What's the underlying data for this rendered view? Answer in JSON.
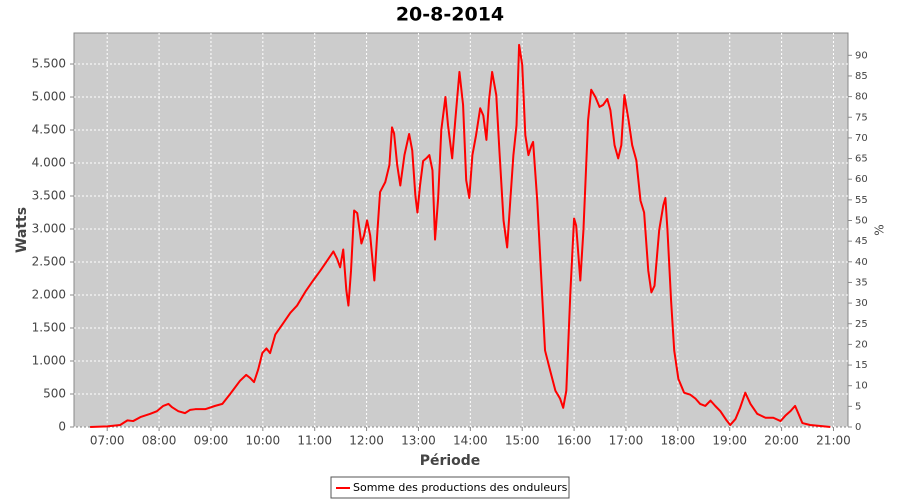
{
  "chart_data": {
    "type": "line",
    "title": "20-8-2014",
    "x_label": "Période",
    "y_label": "Watts",
    "y2_label": "%",
    "grid": true,
    "legend": "bottom",
    "xlim": [
      6.36,
      21.28
    ],
    "xticks": [
      {
        "value": 7,
        "label": "07:00"
      },
      {
        "value": 8,
        "label": "08:00"
      },
      {
        "value": 9,
        "label": "09:00"
      },
      {
        "value": 10,
        "label": "10:00"
      },
      {
        "value": 11,
        "label": "11:00"
      },
      {
        "value": 12,
        "label": "12:00"
      },
      {
        "value": 13,
        "label": "13:00"
      },
      {
        "value": 14,
        "label": "14:00"
      },
      {
        "value": 15,
        "label": "15:00"
      },
      {
        "value": 16,
        "label": "16:00"
      },
      {
        "value": 17,
        "label": "17:00"
      },
      {
        "value": 18,
        "label": "18:00"
      },
      {
        "value": 19,
        "label": "19:00"
      },
      {
        "value": 20,
        "label": "20:00"
      },
      {
        "value": 21,
        "label": "21:00"
      }
    ],
    "ylim": [
      0,
      5970
    ],
    "yticks": [
      0,
      500,
      {
        "value": 1000,
        "label": "1.000"
      },
      {
        "value": 1500,
        "label": "1.500"
      },
      {
        "value": 2000,
        "label": "2.000"
      },
      {
        "value": 2500,
        "label": "2.500"
      },
      {
        "value": 3000,
        "label": "3.000"
      },
      {
        "value": 3500,
        "label": "3.500"
      },
      {
        "value": 4000,
        "label": "4.000"
      },
      {
        "value": 4500,
        "label": "4.500"
      },
      {
        "value": 5000,
        "label": "5.000"
      },
      {
        "value": 5500,
        "label": "5.500"
      }
    ],
    "y2lim": [
      0,
      95.4
    ],
    "y2ticks": [
      0,
      5,
      10,
      15,
      20,
      25,
      30,
      35,
      40,
      45,
      50,
      55,
      60,
      65,
      70,
      75,
      80,
      85,
      90
    ],
    "x": [
      6.67,
      7.0,
      7.25,
      7.39,
      7.5,
      7.64,
      7.83,
      7.96,
      8.08,
      8.18,
      8.25,
      8.37,
      8.5,
      8.6,
      8.7,
      8.89,
      9.08,
      9.22,
      9.37,
      9.56,
      9.68,
      9.76,
      9.83,
      9.91,
      9.99,
      10.07,
      10.14,
      10.24,
      10.39,
      10.53,
      10.66,
      10.82,
      10.97,
      11.11,
      11.24,
      11.36,
      11.43,
      11.49,
      11.55,
      11.61,
      11.65,
      11.7,
      11.76,
      11.82,
      11.9,
      11.95,
      12.01,
      12.07,
      12.15,
      12.21,
      12.26,
      12.36,
      12.44,
      12.49,
      12.53,
      12.59,
      12.65,
      12.73,
      12.82,
      12.88,
      12.94,
      12.98,
      13.03,
      13.09,
      13.15,
      13.21,
      13.27,
      13.32,
      13.38,
      13.44,
      13.52,
      13.57,
      13.65,
      13.71,
      13.79,
      13.86,
      13.92,
      13.98,
      14.04,
      14.11,
      14.19,
      14.25,
      14.31,
      14.36,
      14.42,
      14.5,
      14.56,
      14.64,
      14.71,
      14.77,
      14.83,
      14.89,
      14.94,
      15.0,
      15.06,
      15.12,
      15.18,
      15.21,
      15.29,
      15.35,
      15.44,
      15.54,
      15.64,
      15.73,
      15.79,
      15.85,
      15.93,
      16.0,
      16.04,
      16.12,
      16.18,
      16.27,
      16.33,
      16.41,
      16.49,
      16.56,
      16.64,
      16.7,
      16.78,
      16.85,
      16.91,
      16.97,
      17.05,
      17.12,
      17.2,
      17.28,
      17.35,
      17.43,
      17.49,
      17.55,
      17.64,
      17.72,
      17.76,
      17.8,
      17.87,
      17.93,
      18.01,
      18.12,
      18.24,
      18.34,
      18.43,
      18.53,
      18.63,
      18.72,
      18.82,
      18.93,
      19.01,
      19.11,
      19.2,
      19.3,
      19.4,
      19.53,
      19.69,
      19.84,
      19.98,
      20.07,
      20.17,
      20.26,
      20.32,
      20.4,
      20.55,
      20.75,
      20.94
    ],
    "series": [
      {
        "name": "Somme des productions des onduleurs",
        "color": "#ff0000",
        "values": [
          0,
          10,
          30,
          100,
          90,
          150,
          200,
          240,
          320,
          350,
          300,
          240,
          210,
          260,
          270,
          270,
          320,
          350,
          500,
          700,
          790,
          740,
          680,
          870,
          1120,
          1190,
          1120,
          1400,
          1570,
          1730,
          1840,
          2050,
          2220,
          2370,
          2520,
          2660,
          2550,
          2420,
          2690,
          2070,
          1840,
          2370,
          3280,
          3240,
          2780,
          2900,
          3130,
          2900,
          2220,
          2980,
          3560,
          3710,
          3970,
          4540,
          4450,
          3970,
          3660,
          4120,
          4440,
          4190,
          3510,
          3250,
          3660,
          4030,
          4070,
          4120,
          3890,
          2840,
          3470,
          4500,
          5000,
          4570,
          4070,
          4650,
          5380,
          4880,
          3740,
          3470,
          4120,
          4420,
          4830,
          4720,
          4350,
          4950,
          5380,
          5030,
          4190,
          3130,
          2720,
          3430,
          4120,
          4570,
          5790,
          5490,
          4420,
          4120,
          4270,
          4320,
          3430,
          2520,
          1160,
          850,
          550,
          430,
          290,
          550,
          2070,
          3160,
          3050,
          2220,
          2980,
          4650,
          5110,
          5000,
          4850,
          4880,
          4970,
          4800,
          4270,
          4070,
          4270,
          5030,
          4650,
          4270,
          4040,
          3430,
          3250,
          2370,
          2040,
          2140,
          2980,
          3360,
          3470,
          2980,
          1910,
          1160,
          730,
          520,
          490,
          430,
          350,
          320,
          400,
          320,
          240,
          110,
          30,
          120,
          290,
          520,
          350,
          200,
          140,
          140,
          90,
          170,
          240,
          320,
          210,
          60,
          30,
          15,
          0
        ]
      }
    ]
  }
}
